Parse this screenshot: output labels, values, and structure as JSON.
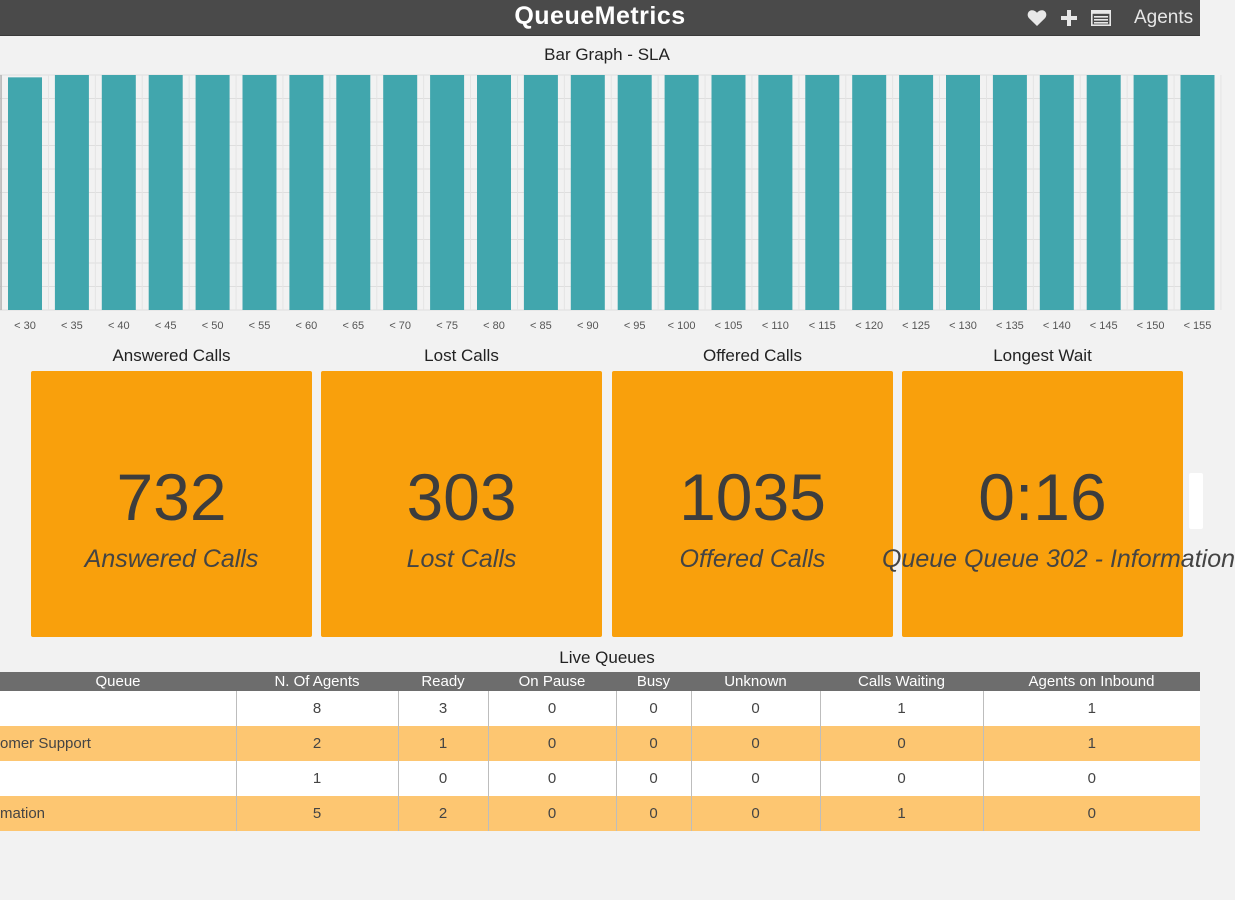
{
  "app": {
    "title": "QueueMetrics",
    "menu_agents_label": "Agents"
  },
  "icons": {
    "favorites": "heart-icon",
    "add": "plus-icon",
    "list": "list-window-icon"
  },
  "colors": {
    "bar": "#41a6ad",
    "kpi_card": "#f9a00c",
    "row_highlight": "#fdc671",
    "header_bg": "#6d6d6d"
  },
  "sla_chart": {
    "title": "Bar Graph - SLA"
  },
  "chart_data": {
    "type": "bar",
    "title": "Bar Graph - SLA",
    "categories": [
      "< 30",
      "< 35",
      "< 40",
      "< 45",
      "< 50",
      "< 55",
      "< 60",
      "< 65",
      "< 70",
      "< 75",
      "< 80",
      "< 85",
      "< 90",
      "< 95",
      "< 100",
      "< 105",
      "< 110",
      "< 115",
      "< 120",
      "< 125",
      "< 130",
      "< 135",
      "< 140",
      "< 145",
      "< 150",
      "< 155"
    ],
    "values": [
      99,
      100,
      100,
      100,
      100,
      100,
      100,
      100,
      100,
      100,
      100,
      100,
      100,
      100,
      100,
      100,
      100,
      100,
      100,
      100,
      100,
      100,
      100,
      100,
      100,
      100
    ],
    "ylim": [
      0,
      100
    ],
    "xlabel": "",
    "ylabel": "",
    "grid": true
  },
  "kpis": [
    {
      "label": "Answered Calls",
      "value": "732",
      "caption": "Answered Calls"
    },
    {
      "label": "Lost Calls",
      "value": "303",
      "caption": "Lost Calls"
    },
    {
      "label": "Offered Calls",
      "value": "1035",
      "caption": "Offered Calls"
    },
    {
      "label": "Longest Wait",
      "value": "0:16",
      "caption": "Queue Queue 302 - Information"
    }
  ],
  "live_queues": {
    "title": "Live Queues",
    "columns": [
      "Queue",
      "N. Of Agents",
      "Ready",
      "On Pause",
      "Busy",
      "Unknown",
      "Calls Waiting",
      "Agents on Inbound"
    ],
    "rows": [
      {
        "queue": "",
        "agents": "8",
        "ready": "3",
        "pause": "0",
        "busy": "0",
        "unknown": "0",
        "waiting": "1",
        "inbound": "1"
      },
      {
        "queue": "omer Support",
        "agents": "2",
        "ready": "1",
        "pause": "0",
        "busy": "0",
        "unknown": "0",
        "waiting": "0",
        "inbound": "1"
      },
      {
        "queue": "",
        "agents": "1",
        "ready": "0",
        "pause": "0",
        "busy": "0",
        "unknown": "0",
        "waiting": "0",
        "inbound": "0"
      },
      {
        "queue": "mation",
        "agents": "5",
        "ready": "2",
        "pause": "0",
        "busy": "0",
        "unknown": "0",
        "waiting": "1",
        "inbound": "0"
      }
    ]
  }
}
